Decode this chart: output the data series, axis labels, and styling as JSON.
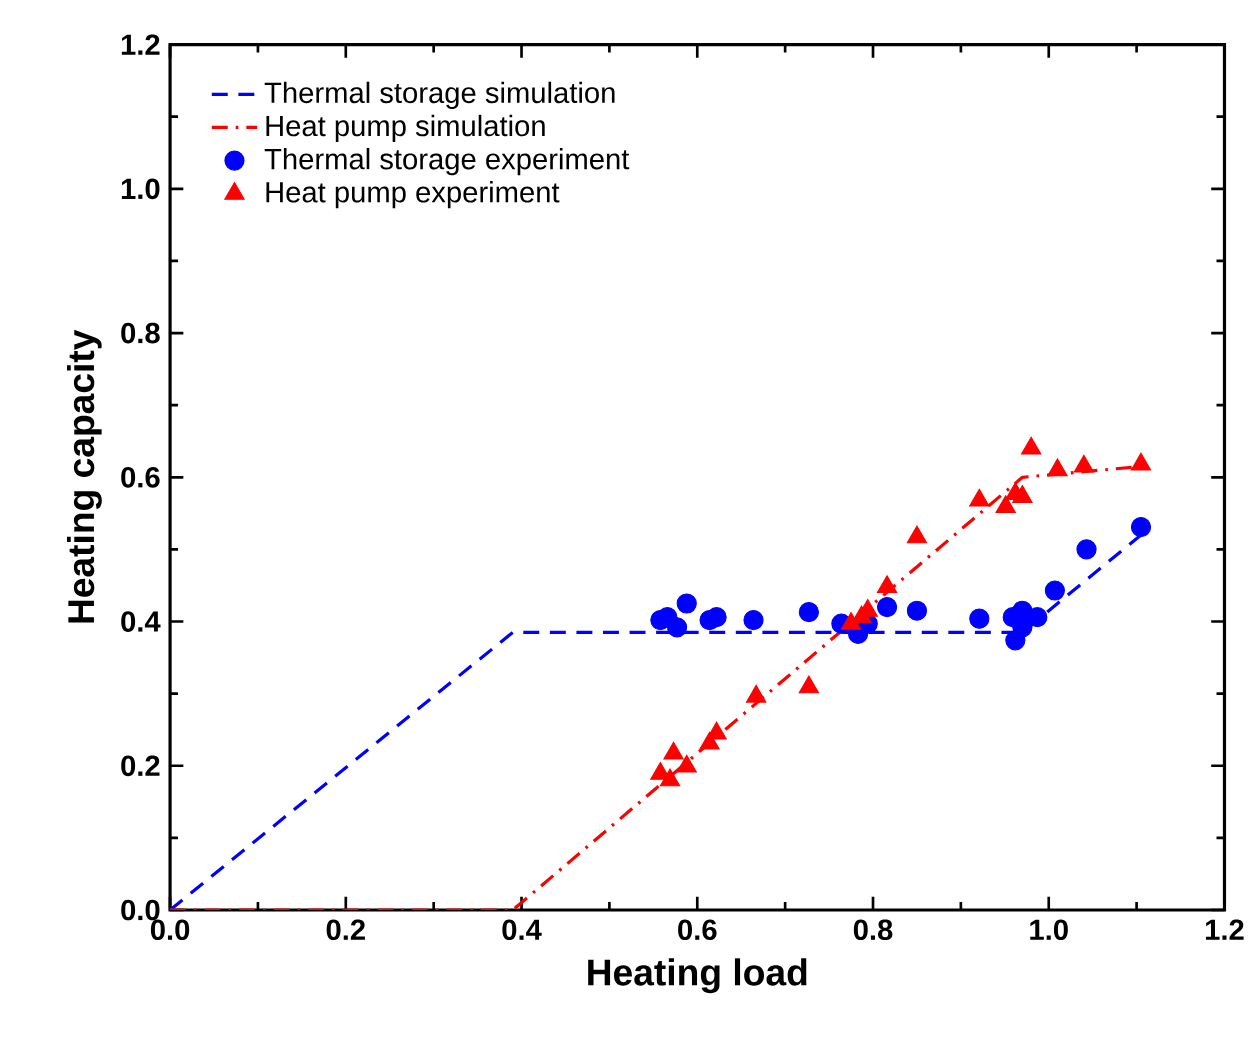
{
  "chart_data": {
    "type": "scatter",
    "xlabel": "Heating load",
    "ylabel": "Heating capacity",
    "xlim": [
      0,
      1.2
    ],
    "ylim": [
      0,
      1.2
    ],
    "xticks": [
      {
        "value": 0,
        "label": "0.0"
      },
      0.2,
      0.4,
      0.6,
      0.8,
      {
        "value": 1,
        "label": "1.0"
      },
      1.2
    ],
    "yticks": [
      {
        "value": 0,
        "label": "0.0"
      },
      0.2,
      0.4,
      0.6,
      0.8,
      {
        "value": 1,
        "label": "1.0"
      },
      1.2
    ],
    "grid": false,
    "legend": "top left",
    "series": [
      {
        "name": "Thermal storage simulation",
        "type": "line",
        "line_style": "dashed",
        "marker": "none",
        "color": "#0000ff",
        "x": [
          0,
          0.39,
          0.97,
          1.105
        ],
        "values": [
          0,
          0.385,
          0.385,
          0.52
        ]
      },
      {
        "name": "Heat pump simulation",
        "type": "line",
        "line_style": "dashdot",
        "marker": "none",
        "color": "#ff0000",
        "x": [
          0,
          0.39,
          0.97,
          1.105
        ],
        "values": [
          0,
          0,
          0.6,
          0.615
        ]
      },
      {
        "name": "Thermal storage experiment",
        "marker": "circle",
        "color": "#0000ff",
        "x": [
          0.558,
          0.566,
          0.577,
          0.588,
          0.614,
          0.622,
          0.664,
          0.727,
          0.764,
          0.783,
          0.794,
          0.816,
          0.85,
          0.921,
          0.959,
          0.97,
          0.962,
          0.97,
          0.987,
          1.007,
          1.043,
          1.105
        ],
        "values": [
          0.402,
          0.406,
          0.392,
          0.425,
          0.402,
          0.406,
          0.402,
          0.413,
          0.397,
          0.383,
          0.397,
          0.42,
          0.415,
          0.404,
          0.406,
          0.415,
          0.374,
          0.392,
          0.406,
          0.443,
          0.5,
          0.531
        ]
      },
      {
        "name": "Heat pump experiment",
        "marker": "triangle",
        "color": "#ff0000",
        "x": [
          0.558,
          0.573,
          0.569,
          0.588,
          0.614,
          0.622,
          0.667,
          0.727,
          0.775,
          0.787,
          0.794,
          0.816,
          0.85,
          0.921,
          0.951,
          0.962,
          0.97,
          0.98,
          1.01,
          1.04,
          1.105
        ],
        "values": [
          0.189,
          0.217,
          0.18,
          0.199,
          0.231,
          0.245,
          0.296,
          0.309,
          0.397,
          0.406,
          0.415,
          0.448,
          0.517,
          0.568,
          0.559,
          0.577,
          0.573,
          0.64,
          0.61,
          0.615,
          0.618
        ]
      }
    ]
  }
}
